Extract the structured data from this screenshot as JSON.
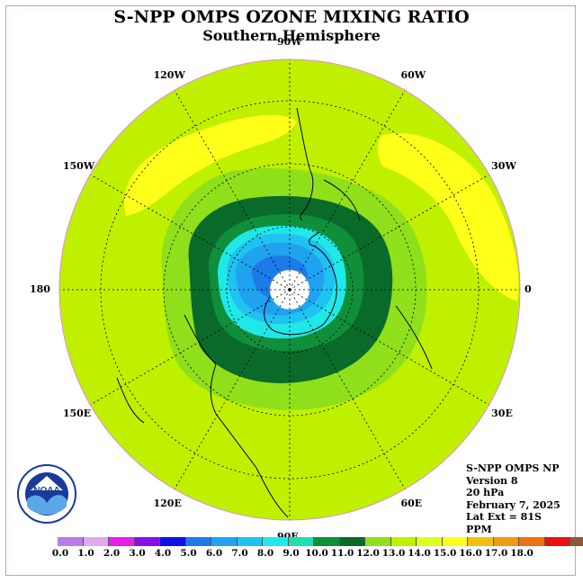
{
  "title": "S-NPP OMPS OZONE MIXING RATIO",
  "subtitle": "Southern Hemisphere",
  "longitude_labels": [
    {
      "text": "90W",
      "lon": -90
    },
    {
      "text": "60W",
      "lon": -60
    },
    {
      "text": "120W",
      "lon": -120
    },
    {
      "text": "30W",
      "lon": -30
    },
    {
      "text": "150W",
      "lon": -150
    },
    {
      "text": "0",
      "lon": 0
    },
    {
      "text": "180",
      "lon": 180
    },
    {
      "text": "30E",
      "lon": 30
    },
    {
      "text": "150E",
      "lon": 150
    },
    {
      "text": "60E",
      "lon": 60
    },
    {
      "text": "120E",
      "lon": 120
    },
    {
      "text": "90E",
      "lon": 90
    }
  ],
  "info": {
    "instrument": "S-NPP OMPS NP",
    "version": "Version 8",
    "level": "20 hPa",
    "date": "February 7, 2025",
    "lat_ext": "Lat Ext = 81S",
    "units": "PPM"
  },
  "colorbar": {
    "colors": [
      "#b97ee8",
      "#dfaaf0",
      "#e81ee8",
      "#8a0fe6",
      "#1010e6",
      "#1d7ae8",
      "#1fa3f0",
      "#1fc2f0",
      "#20e8e8",
      "#1fdfb0",
      "#0f8f3a",
      "#0a6a2a",
      "#8fe01a",
      "#bff000",
      "#e0ff1a",
      "#ffff1a",
      "#f0c010",
      "#f09a10",
      "#f07010",
      "#e81010",
      "#8a5a3a"
    ],
    "ticks": [
      "0.0",
      "1.0",
      "2.0",
      "3.0",
      "4.0",
      "5.0",
      "6.0",
      "7.0",
      "8.0",
      "9.0",
      "10.0",
      "11.0",
      "12.0",
      "13.0",
      "14.0",
      "15.0",
      "16.0",
      "17.0",
      "18.0"
    ]
  },
  "logo_text": "NOAA"
}
